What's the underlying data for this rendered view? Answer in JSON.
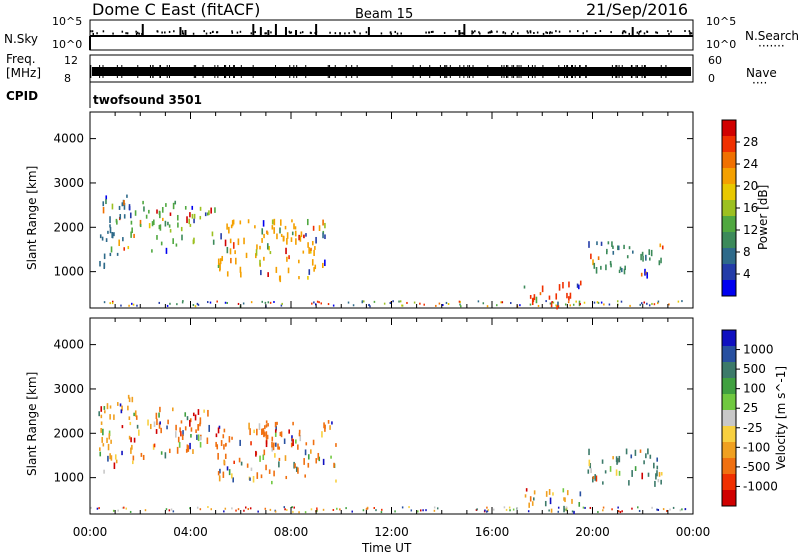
{
  "header": {
    "station": "Dome C East (fitACF)",
    "beam": "Beam 15",
    "date": "21/Sep/2016"
  },
  "side_labels": {
    "n_sky": "N.Sky",
    "freq_line1": "Freq.",
    "freq_line2": "[MHz]",
    "cpid": "CPID",
    "n_search": "N.Search",
    "n_search_dots": "·······",
    "nave": "Nave",
    "nave_dots": "····"
  },
  "mini_axes": {
    "nsky_ticks": [
      "10^5",
      "10^0"
    ],
    "nsearch_ticks": [
      "10^5",
      "10^0"
    ],
    "freq_ticks": [
      "12",
      "8"
    ],
    "nave_ticks": [
      "60",
      "0"
    ]
  },
  "cpid_text": "twofsound 3501",
  "chart_data": [
    {
      "type": "heatmap",
      "panel": "power",
      "ylabel": "Slant Range [km]",
      "ylim": [
        180,
        4600
      ],
      "yticks": [
        1000,
        2000,
        3000,
        4000
      ],
      "xlim": [
        0,
        24
      ],
      "colorbar": {
        "label": "Power [dB]",
        "ticks": [
          "28",
          "24",
          "20",
          "16",
          "12",
          "8",
          "4"
        ],
        "colors": [
          "#d00000",
          "#f03000",
          "#f07000",
          "#f4a000",
          "#e8c800",
          "#9cc020",
          "#50a840",
          "#3c8a5a",
          "#2e6a8a",
          "#243ca8",
          "#0000f0"
        ]
      },
      "regions": [
        {
          "x0": 0.3,
          "x1": 1.5,
          "y0": 1100,
          "y1": 2800,
          "color": "#2e6a8a"
        },
        {
          "x0": 1.5,
          "x1": 3.5,
          "y0": 1500,
          "y1": 2600,
          "color": "#50a840"
        },
        {
          "x0": 3.5,
          "x1": 5.0,
          "y0": 1700,
          "y1": 2500,
          "color": "#9cc020"
        },
        {
          "x0": 5.0,
          "x1": 9.5,
          "y0": 900,
          "y1": 2200,
          "color": "#f4a000"
        },
        {
          "x0": 17.2,
          "x1": 19.5,
          "y0": 250,
          "y1": 800,
          "color": "#f03000"
        },
        {
          "x0": 19.8,
          "x1": 22.8,
          "y0": 900,
          "y1": 1700,
          "color": "#3c8a5a"
        }
      ]
    },
    {
      "type": "heatmap",
      "panel": "velocity",
      "xlabel": "Time UT",
      "ylabel": "Slant Range [km]",
      "ylim": [
        180,
        4600
      ],
      "yticks": [
        1000,
        2000,
        3000,
        4000
      ],
      "xlim": [
        0,
        24
      ],
      "x_tick_labels": [
        "00:00",
        "04:00",
        "08:00",
        "12:00",
        "16:00",
        "20:00",
        "00:00"
      ],
      "colorbar": {
        "label": "Velocity [m s^-1]",
        "ticks": [
          "1000",
          "500",
          "100",
          "25",
          "-25",
          "-100",
          "-500",
          "-1000"
        ],
        "colors": [
          "#1010c0",
          "#2850a0",
          "#3c7a6a",
          "#40a040",
          "#70c840",
          "#c8c8c8",
          "#f8d040",
          "#f0a020",
          "#f07010",
          "#f03000",
          "#d00000"
        ]
      },
      "regions": [
        {
          "x0": 0.3,
          "x1": 1.8,
          "y0": 1100,
          "y1": 2900,
          "color": "#f0a020"
        },
        {
          "x0": 1.8,
          "x1": 5.0,
          "y0": 1500,
          "y1": 2600,
          "color": "#f07010"
        },
        {
          "x0": 5.0,
          "x1": 9.8,
          "y0": 900,
          "y1": 2300,
          "color": "#f07010"
        },
        {
          "x0": 17.2,
          "x1": 19.5,
          "y0": 250,
          "y1": 800,
          "color": "#f0a020"
        },
        {
          "x0": 19.8,
          "x1": 22.8,
          "y0": 900,
          "y1": 1700,
          "color": "#3c7a6a"
        }
      ]
    }
  ]
}
